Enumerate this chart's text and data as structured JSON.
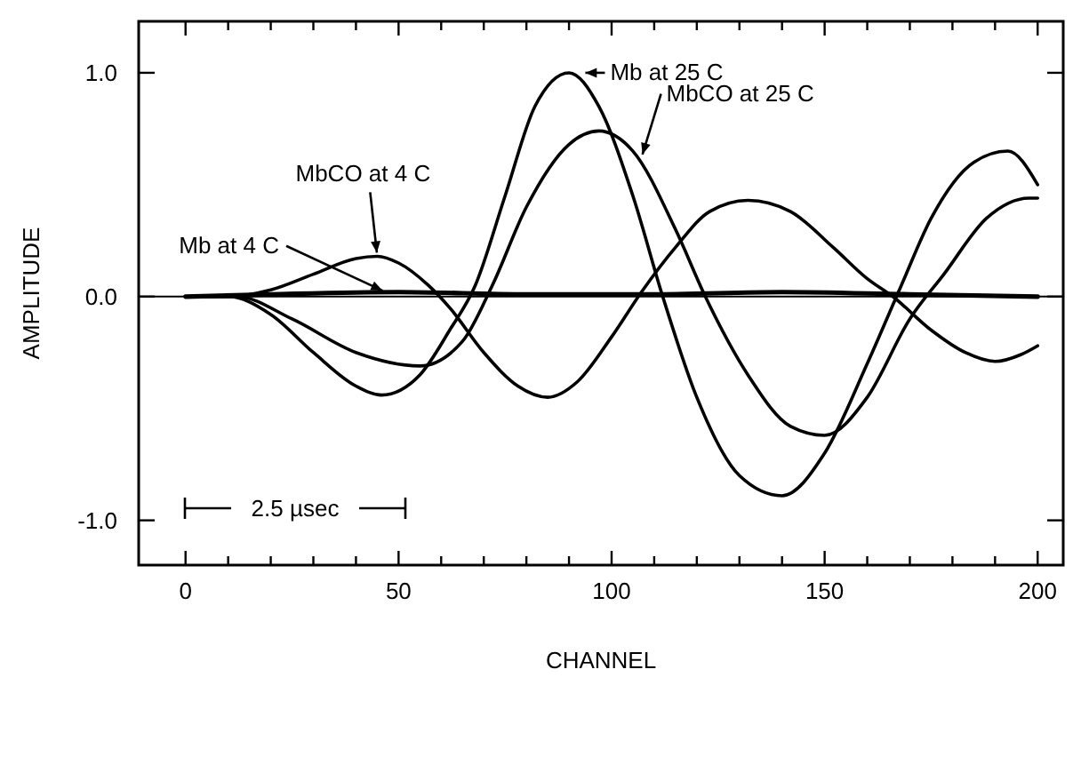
{
  "chart_data": {
    "type": "line",
    "xlabel": "CHANNEL",
    "ylabel": "AMPLITUDE",
    "xlim": [
      -11,
      206
    ],
    "ylim": [
      -1.2,
      1.23
    ],
    "xticks": [
      0,
      {
        "value": 10,
        "label": null
      },
      {
        "value": 20,
        "label": null
      },
      {
        "value": 30,
        "label": null
      },
      {
        "value": 40,
        "label": null
      },
      50,
      {
        "value": 60,
        "label": null
      },
      {
        "value": 70,
        "label": null
      },
      {
        "value": 80,
        "label": null
      },
      {
        "value": 90,
        "label": null
      },
      100,
      {
        "value": 110,
        "label": null
      },
      {
        "value": 120,
        "label": null
      },
      {
        "value": 130,
        "label": null
      },
      {
        "value": 140,
        "label": null
      },
      150,
      {
        "value": 160,
        "label": null
      },
      {
        "value": 170,
        "label": null
      },
      {
        "value": 180,
        "label": null
      },
      {
        "value": 190,
        "label": null
      },
      200
    ],
    "yticks": [
      {
        "value": -1,
        "label": "-1.0"
      },
      {
        "value": 0,
        "label": "0.0"
      },
      {
        "value": 1,
        "label": "1.0"
      }
    ],
    "grid": false,
    "marker": "none",
    "line_style": "solid",
    "ref_lines": [
      {
        "axis": "y",
        "value": 0,
        "color": "#000000"
      }
    ],
    "series": [
      {
        "color": "#000000",
        "x": [
          0,
          10,
          20,
          30,
          40,
          46,
          55,
          62,
          68,
          75,
          82,
          90,
          97,
          105,
          112,
          120,
          130,
          140,
          150,
          160,
          168,
          175,
          185,
          193,
          200
        ],
        "values": [
          0,
          0,
          -0.08,
          -0.25,
          -0.4,
          -0.44,
          -0.35,
          -0.15,
          0.05,
          0.45,
          0.85,
          1.0,
          0.85,
          0.45,
          0,
          -0.45,
          -0.8,
          -0.89,
          -0.7,
          -0.3,
          0.05,
          0.35,
          0.6,
          0.65,
          0.5
        ]
      },
      {
        "color": "#000000",
        "x": [
          0,
          12,
          25,
          40,
          55,
          65,
          72,
          80,
          90,
          97,
          105,
          115,
          122,
          132,
          142,
          150,
          160,
          170,
          178,
          188,
          198,
          200
        ],
        "values": [
          0,
          0,
          -0.1,
          -0.25,
          -0.31,
          -0.2,
          0.05,
          0.4,
          0.68,
          0.74,
          0.65,
          0.3,
          0,
          -0.35,
          -0.58,
          -0.62,
          -0.45,
          -0.1,
          0.1,
          0.35,
          0.44,
          0.44
        ]
      },
      {
        "color": "#000000",
        "x": [
          0,
          10,
          20,
          30,
          40,
          45,
          50,
          57,
          62,
          70,
          78,
          85,
          92,
          100,
          107,
          115,
          123,
          132,
          142,
          152,
          160,
          166,
          175,
          183,
          190,
          196,
          200
        ],
        "values": [
          0,
          0,
          0.03,
          0.1,
          0.17,
          0.18,
          0.15,
          0.05,
          -0.05,
          -0.25,
          -0.4,
          -0.45,
          -0.38,
          -0.18,
          0.02,
          0.22,
          0.38,
          0.43,
          0.38,
          0.22,
          0.08,
          0,
          -0.15,
          -0.25,
          -0.29,
          -0.26,
          -0.22
        ]
      },
      {
        "color": "#000000",
        "x": [
          0,
          20,
          50,
          80,
          110,
          140,
          170,
          200
        ],
        "values": [
          0,
          0.01,
          0.02,
          0.01,
          0.01,
          0.02,
          0.01,
          0
        ]
      }
    ],
    "annotations": [
      {
        "text": "Mb at 25 C",
        "x": 93,
        "y": 1.0
      },
      {
        "text": "MbCO at 25 C",
        "x": 107,
        "y": 0.62
      },
      {
        "text": "MbCO at 4 C",
        "x": 45,
        "y": 0.18
      },
      {
        "text": "Mb at 4 C",
        "x": 47,
        "y": 0.02
      },
      "2.5 µsec"
    ]
  }
}
